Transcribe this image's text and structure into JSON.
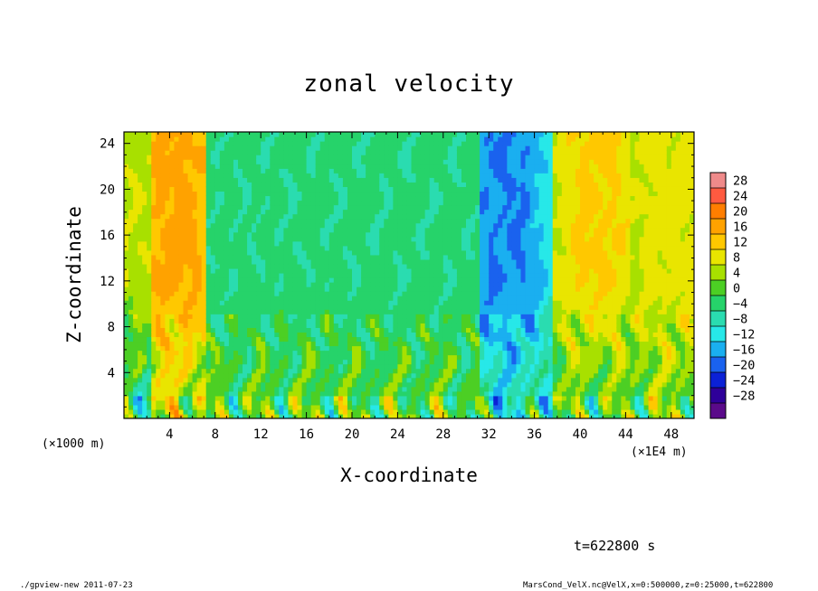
{
  "chart_data": {
    "type": "heatmap",
    "title": "zonal velocity",
    "xlabel": "X-coordinate",
    "ylabel": "Z-coordinate",
    "x_unit_left": "(×1000 m)",
    "x_unit_right": "(×1E4 m)",
    "xlim": [
      0,
      50
    ],
    "ylim": [
      0,
      25
    ],
    "x_ticks": [
      "4",
      "8",
      "12",
      "16",
      "20",
      "24",
      "28",
      "32",
      "36",
      "40",
      "44",
      "48"
    ],
    "y_ticks": [
      "4",
      "8",
      "12",
      "16",
      "20",
      "24"
    ],
    "colorbar_levels": [
      "28",
      "24",
      "20",
      "16",
      "12",
      "8",
      "4",
      "0",
      "−4",
      "−8",
      "−12",
      "−16",
      "−20",
      "−24",
      "−28"
    ],
    "colorbar_colors": [
      "#ef8a8a",
      "#ff5a40",
      "#ff7e00",
      "#ffa200",
      "#ffc800",
      "#e9e500",
      "#a8e000",
      "#4ccf24",
      "#26d36a",
      "#2adcb0",
      "#27e8e8",
      "#1aaff0",
      "#1a62ee",
      "#0b21d6",
      "#2e0099",
      "#5a0a8a"
    ],
    "colorbar_range": [
      -30,
      30
    ],
    "field_description_by_x": [
      {
        "x_range": [
          0,
          2
        ],
        "value_upper": 7,
        "value_lower": -4
      },
      {
        "x_range": [
          3,
          6
        ],
        "value_upper": 16,
        "value_lower": 6
      },
      {
        "x_range": [
          8,
          30
        ],
        "value_upper": -3,
        "value_lower": 2
      },
      {
        "x_range": [
          32,
          35
        ],
        "value_upper": -15,
        "value_lower": -6
      },
      {
        "x_range": [
          40,
          43
        ],
        "value_upper": 12,
        "value_lower": 0
      },
      {
        "x_range": [
          46,
          50
        ],
        "value_upper": 9,
        "value_lower": 3
      }
    ],
    "time_label": "t=622800 s"
  },
  "footer": {
    "left": "./gpview-new   2011-07-23",
    "right": "MarsCond_VelX.nc@VelX,x=0:500000,z=0:25000,t=622800"
  }
}
